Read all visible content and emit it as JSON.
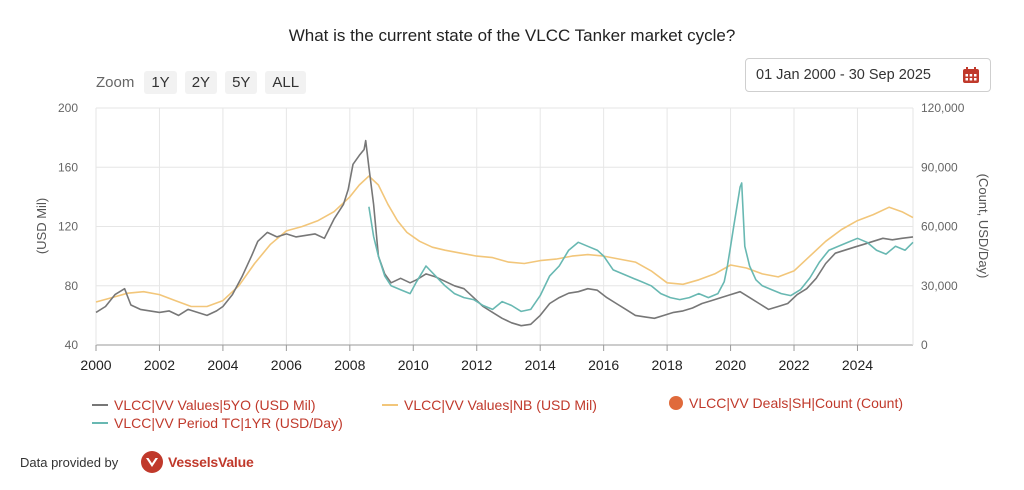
{
  "header": {
    "title": "What is the current state of the VLCC Tanker market cycle?"
  },
  "zoom": {
    "label": "Zoom",
    "buttons": [
      "1Y",
      "2Y",
      "5Y",
      "ALL"
    ]
  },
  "date_range": {
    "value": "01 Jan 2000 - 30 Sep 2025",
    "icon": "calendar-icon"
  },
  "footer": {
    "provided_by": "Data provided by",
    "brand": "VesselsValue"
  },
  "colors": {
    "values5yo": "#777777",
    "valuesNB": "#f2c67a",
    "deals": "#e06a3b",
    "periodTC": "#68b8b2",
    "legend_text": "#c0392b"
  },
  "chart_data": {
    "type": "line",
    "title": "What is the current state of the VLCC Tanker market cycle?",
    "xlim": [
      2000,
      2025.75
    ],
    "xticks": [
      2000,
      2002,
      2004,
      2006,
      2008,
      2010,
      2012,
      2014,
      2016,
      2018,
      2020,
      2022,
      2024
    ],
    "y_left": {
      "label": "(USD Mil)",
      "lim": [
        40,
        200
      ],
      "ticks": [
        40,
        80,
        120,
        160,
        200
      ]
    },
    "y_right": {
      "label": "(Count, USD/Day)",
      "lim": [
        0,
        120000
      ],
      "ticks": [
        0,
        30000,
        60000,
        90000,
        120000
      ],
      "tick_labels": [
        "0",
        "30,000",
        "60,000",
        "90,000",
        "120,000"
      ]
    },
    "grid": true,
    "legend_position": "bottom",
    "series": [
      {
        "name": "VLCC|VV Values|5YO (USD Mil)",
        "axis": "left",
        "color_key": "values5yo",
        "x": [
          2000.0,
          2000.3,
          2000.6,
          2000.9,
          2001.1,
          2001.4,
          2001.7,
          2002.0,
          2002.3,
          2002.6,
          2002.9,
          2003.2,
          2003.5,
          2003.8,
          2004.0,
          2004.3,
          2004.6,
          2004.9,
          2005.1,
          2005.4,
          2005.7,
          2006.0,
          2006.3,
          2006.6,
          2006.9,
          2007.2,
          2007.5,
          2007.8,
          2007.95,
          2008.1,
          2008.3,
          2008.45,
          2008.5,
          2008.6,
          2008.75,
          2008.9,
          2009.1,
          2009.3,
          2009.6,
          2009.9,
          2010.1,
          2010.4,
          2010.7,
          2011.0,
          2011.3,
          2011.6,
          2011.9,
          2012.2,
          2012.5,
          2012.8,
          2013.1,
          2013.4,
          2013.7,
          2014.0,
          2014.3,
          2014.6,
          2014.9,
          2015.2,
          2015.5,
          2015.8,
          2016.1,
          2016.4,
          2016.7,
          2017.0,
          2017.3,
          2017.6,
          2017.9,
          2018.2,
          2018.5,
          2018.8,
          2019.1,
          2019.4,
          2019.7,
          2020.0,
          2020.3,
          2020.6,
          2020.9,
          2021.2,
          2021.5,
          2021.8,
          2022.1,
          2022.4,
          2022.7,
          2023.0,
          2023.3,
          2023.6,
          2023.9,
          2024.2,
          2024.5,
          2024.8,
          2025.1,
          2025.4,
          2025.75
        ],
        "values": [
          62,
          66,
          74,
          78,
          67,
          64,
          63,
          62,
          63,
          60,
          64,
          62,
          60,
          63,
          66,
          74,
          86,
          100,
          110,
          116,
          113,
          115,
          113,
          114,
          115,
          112,
          125,
          135,
          145,
          162,
          168,
          172,
          178,
          160,
          135,
          100,
          88,
          82,
          85,
          82,
          84,
          88,
          86,
          83,
          80,
          78,
          72,
          66,
          62,
          58,
          55,
          53,
          54,
          60,
          68,
          72,
          75,
          76,
          78,
          77,
          72,
          68,
          64,
          60,
          59,
          58,
          60,
          62,
          63,
          65,
          68,
          70,
          72,
          74,
          76,
          72,
          68,
          64,
          66,
          68,
          74,
          78,
          85,
          95,
          102,
          104,
          106,
          108,
          110,
          112,
          111,
          112,
          113
        ]
      },
      {
        "name": "VLCC|VV Values|NB (USD Mil)",
        "axis": "left",
        "color_key": "valuesNB",
        "x": [
          2000.0,
          2000.5,
          2001.0,
          2001.5,
          2002.0,
          2002.5,
          2003.0,
          2003.5,
          2004.0,
          2004.5,
          2005.0,
          2005.5,
          2006.0,
          2006.5,
          2007.0,
          2007.5,
          2008.0,
          2008.3,
          2008.6,
          2008.9,
          2009.2,
          2009.5,
          2009.8,
          2010.2,
          2010.6,
          2011.0,
          2011.5,
          2012.0,
          2012.5,
          2013.0,
          2013.5,
          2014.0,
          2014.5,
          2015.0,
          2015.5,
          2016.0,
          2016.5,
          2017.0,
          2017.5,
          2018.0,
          2018.5,
          2019.0,
          2019.5,
          2020.0,
          2020.5,
          2021.0,
          2021.5,
          2022.0,
          2022.5,
          2023.0,
          2023.5,
          2024.0,
          2024.5,
          2025.0,
          2025.4,
          2025.75
        ],
        "values": [
          69,
          72,
          75,
          76,
          74,
          70,
          66,
          66,
          70,
          80,
          95,
          108,
          117,
          120,
          124,
          130,
          140,
          148,
          154,
          148,
          135,
          124,
          116,
          110,
          106,
          104,
          102,
          100,
          99,
          96,
          95,
          97,
          98,
          100,
          101,
          100,
          98,
          96,
          90,
          82,
          81,
          84,
          88,
          94,
          92,
          88,
          86,
          90,
          100,
          110,
          118,
          124,
          128,
          133,
          130,
          126
        ]
      },
      {
        "name": "VLCC|VV Period TC|1YR (USD/Day)",
        "axis": "right",
        "color_key": "periodTC",
        "x": [
          2008.6,
          2008.75,
          2008.9,
          2009.1,
          2009.3,
          2009.6,
          2009.9,
          2010.1,
          2010.4,
          2010.7,
          2011.0,
          2011.3,
          2011.6,
          2011.9,
          2012.2,
          2012.5,
          2012.8,
          2013.1,
          2013.4,
          2013.7,
          2014.0,
          2014.3,
          2014.6,
          2014.9,
          2015.2,
          2015.5,
          2015.8,
          2016.0,
          2016.3,
          2016.6,
          2016.9,
          2017.2,
          2017.5,
          2017.8,
          2018.1,
          2018.4,
          2018.7,
          2019.0,
          2019.3,
          2019.6,
          2019.8,
          2019.9,
          2020.0,
          2020.1,
          2020.2,
          2020.3,
          2020.35,
          2020.45,
          2020.6,
          2020.8,
          2021.0,
          2021.3,
          2021.6,
          2021.9,
          2022.2,
          2022.5,
          2022.8,
          2023.1,
          2023.4,
          2023.7,
          2024.0,
          2024.3,
          2024.6,
          2024.9,
          2025.2,
          2025.5,
          2025.75
        ],
        "values": [
          70000,
          55000,
          45000,
          35000,
          30000,
          28000,
          26000,
          32000,
          40000,
          35000,
          30000,
          26000,
          24000,
          23000,
          20000,
          18000,
          22000,
          20000,
          17000,
          18000,
          25000,
          35000,
          40000,
          48000,
          52000,
          50000,
          48000,
          45000,
          38000,
          36000,
          34000,
          32000,
          30000,
          26000,
          24000,
          23000,
          24000,
          26000,
          24000,
          26000,
          32000,
          40000,
          50000,
          60000,
          70000,
          80000,
          82000,
          50000,
          40000,
          33000,
          30000,
          28000,
          26000,
          25000,
          28000,
          34000,
          42000,
          48000,
          50000,
          52000,
          54000,
          52000,
          48000,
          46000,
          50000,
          48000,
          52000
        ]
      },
      {
        "name": "VLCC|VV Deals|SH|Count (Count)",
        "axis": "right",
        "color_key": "deals",
        "marker": "dot",
        "x": [],
        "values": []
      }
    ]
  }
}
